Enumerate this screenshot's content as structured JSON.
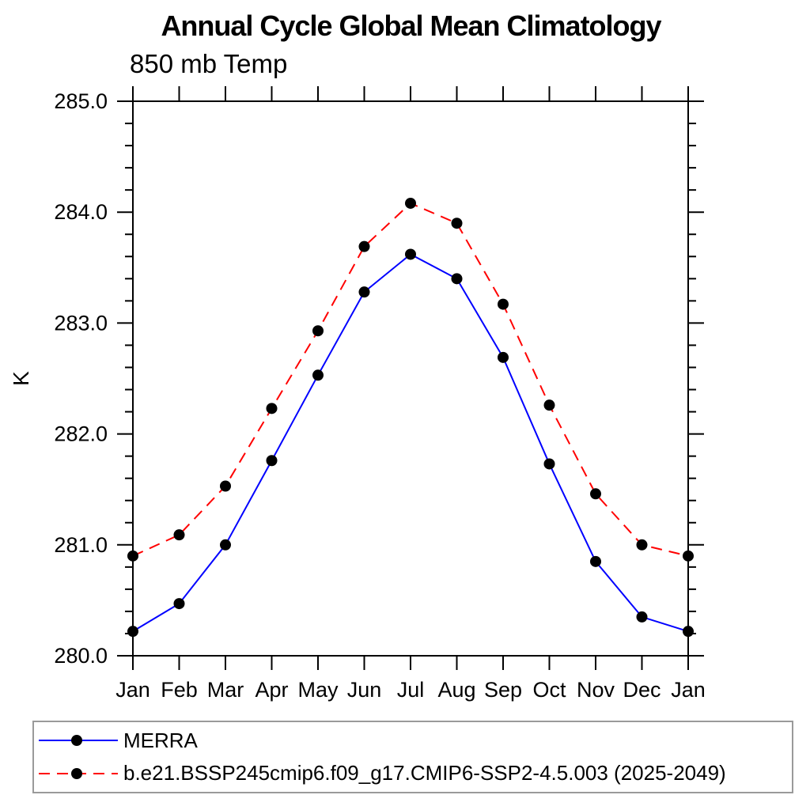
{
  "chart_data": {
    "type": "line",
    "title": "Annual Cycle Global Mean Climatology",
    "subtitle": "850 mb Temp",
    "ylabel": "K",
    "ylim": [
      280.0,
      285.0
    ],
    "ytick_major_step": 1.0,
    "ytick_minor_step": 0.2,
    "xtick_labels_visible": true,
    "grid": false,
    "axis_color": "#000000",
    "categories": [
      "Jan",
      "Feb",
      "Mar",
      "Apr",
      "May",
      "Jun",
      "Jul",
      "Aug",
      "Sep",
      "Oct",
      "Nov",
      "Dec",
      "Jan"
    ],
    "series": [
      {
        "name": "MERRA",
        "color": "#0000ff",
        "line_style": "solid",
        "marker": "filled-circle",
        "marker_color": "#000000",
        "values": [
          280.22,
          280.47,
          281.0,
          281.76,
          282.53,
          283.28,
          283.62,
          283.4,
          282.69,
          281.73,
          280.85,
          280.35,
          280.22
        ]
      },
      {
        "name": "b.e21.BSSP245cmip6.f09_g17.CMIP6-SSP2-4.5.003 (2025-2049)",
        "color": "#ff0000",
        "line_style": "dashed",
        "marker": "filled-circle",
        "marker_color": "#000000",
        "values": [
          280.9,
          281.09,
          281.53,
          282.23,
          282.93,
          283.69,
          284.08,
          283.9,
          283.17,
          282.26,
          281.46,
          281.0,
          280.9
        ]
      }
    ],
    "legend_position": "bottom"
  }
}
